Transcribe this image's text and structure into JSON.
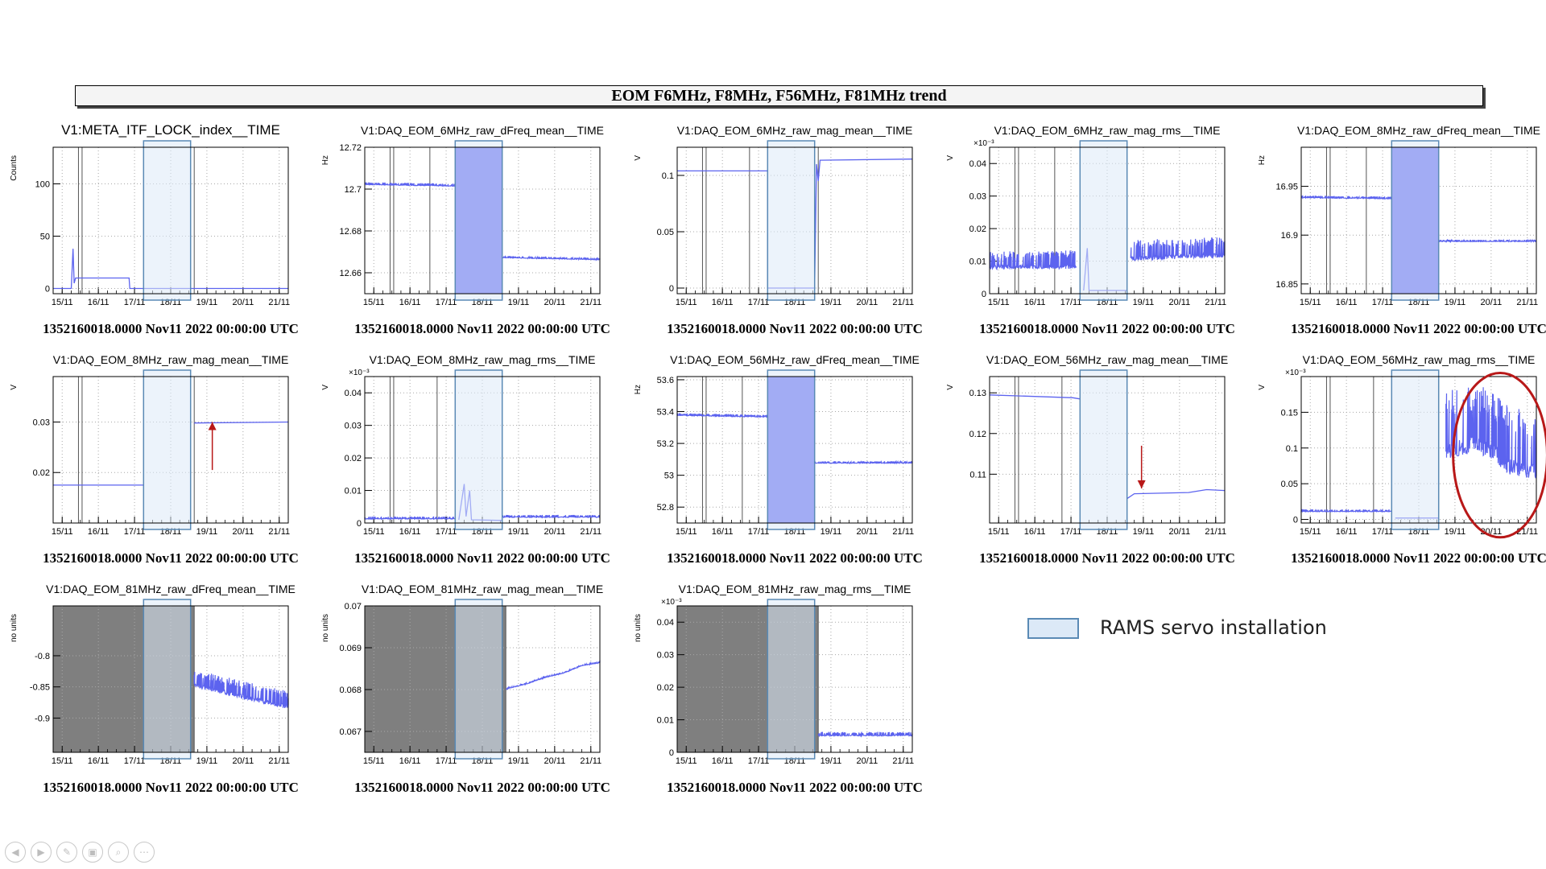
{
  "banner": {
    "title": "EOM F6MHz, F8MHz, F56MHz, F81MHz trend"
  },
  "legend": {
    "label": "RAMS servo installation",
    "fill": "#dce9f7",
    "stroke": "#5a8ab5"
  },
  "colors": {
    "trace": "#5c63ef",
    "highlight": "#b81818",
    "nodata": "#7f7f7f"
  },
  "nav": {
    "icons": [
      "back-icon",
      "forward-icon",
      "pen-icon",
      "slides-icon",
      "zoom-icon",
      "more-icon"
    ]
  },
  "chart_data": [
    {
      "type": "line",
      "title": "V1:META_ITF_LOCK_index__TIME",
      "ylabel": "Counts",
      "yexp": "",
      "footer": "1352160018.0000 Nov11 2022 00:00:00 UTC",
      "xticks": [
        "15/11",
        "16/11",
        "17/11",
        "18/11",
        "19/11",
        "20/11",
        "21/11"
      ],
      "xlim": [
        15,
        21.5
      ],
      "ylim": [
        -5,
        135
      ],
      "yticks": [
        0,
        50,
        100
      ],
      "servo_band": [
        17.5,
        18.8
      ],
      "markers": [
        15.7,
        15.8,
        18.9
      ],
      "series": [
        {
          "values": [
            [
              15,
              0
            ],
            [
              15.5,
              0
            ],
            [
              15.55,
              38
            ],
            [
              15.58,
              5
            ],
            [
              15.62,
              10
            ],
            [
              17.1,
              10
            ],
            [
              17.12,
              0
            ],
            [
              21.5,
              0
            ]
          ]
        }
      ]
    },
    {
      "type": "line",
      "title": "V1:DAQ_EOM_6MHz_raw_dFreq_mean__TIME",
      "ylabel": "Hz",
      "yexp": "",
      "footer": "1352160018.0000 Nov11 2022 00:00:00 UTC",
      "xticks": [
        "15/11",
        "16/11",
        "17/11",
        "18/11",
        "19/11",
        "20/11",
        "21/11"
      ],
      "xlim": [
        15,
        21.5
      ],
      "ylim": [
        12.65,
        12.72
      ],
      "yticks": [
        12.66,
        12.68,
        12.7,
        12.72
      ],
      "servo_band": [
        17.5,
        18.8
      ],
      "markers": [
        15.7,
        15.8,
        16.8
      ],
      "series": [
        {
          "values": [
            [
              15,
              12.7025
            ],
            [
              17.5,
              12.7018
            ]
          ],
          "noise": 0.0008
        },
        {
          "values": [
            [
              18.8,
              12.6675
            ],
            [
              21.5,
              12.6665
            ]
          ],
          "noise": 0.0006
        }
      ],
      "fills": [
        {
          "x": [
            17.5,
            18.8
          ],
          "y": [
            12.65,
            12.72
          ]
        }
      ]
    },
    {
      "type": "line",
      "title": "V1:DAQ_EOM_6MHz_raw_mag_mean__TIME",
      "ylabel": "V",
      "yexp": "",
      "footer": "1352160018.0000 Nov11 2022 00:00:00 UTC",
      "xticks": [
        "15/11",
        "16/11",
        "17/11",
        "18/11",
        "19/11",
        "20/11",
        "21/11"
      ],
      "xlim": [
        15,
        21.5
      ],
      "ylim": [
        -0.005,
        0.125
      ],
      "yticks": [
        0,
        0.05,
        0.1
      ],
      "servo_band": [
        17.5,
        18.8
      ],
      "markers": [
        15.7,
        15.8,
        17.0,
        18.9
      ],
      "series": [
        {
          "values": [
            [
              15,
              0.104
            ],
            [
              17.5,
              0.104
            ],
            [
              17.5,
              0
            ],
            [
              18.8,
              0
            ],
            [
              18.85,
              0.11
            ],
            [
              18.9,
              0.095
            ],
            [
              18.95,
              0.1135
            ],
            [
              21.5,
              0.1145
            ]
          ]
        }
      ]
    },
    {
      "type": "line",
      "title": "V1:DAQ_EOM_6MHz_raw_mag_rms__TIME",
      "ylabel": "V",
      "yexp": "×10⁻³",
      "footer": "1352160018.0000 Nov11 2022 00:00:00 UTC",
      "xticks": [
        "15/11",
        "16/11",
        "17/11",
        "18/11",
        "19/11",
        "20/11",
        "21/11"
      ],
      "xlim": [
        15,
        21.5
      ],
      "ylim": [
        0,
        0.045
      ],
      "yticks": [
        0,
        0.01,
        0.02,
        0.03,
        0.04
      ],
      "servo_band": [
        17.5,
        18.8
      ],
      "markers": [
        15.7,
        15.8,
        16.8
      ],
      "series": [
        {
          "values": [
            [
              15,
              0.0095
            ],
            [
              17.4,
              0.0098
            ]
          ],
          "noise": 0.0035
        },
        {
          "values": [
            [
              17.6,
              0.001
            ],
            [
              17.7,
              0.014
            ],
            [
              17.75,
              0.001
            ],
            [
              18.8,
              0.001
            ]
          ]
        },
        {
          "values": [
            [
              18.9,
              0.0125
            ],
            [
              21.5,
              0.0135
            ]
          ],
          "noise": 0.004
        }
      ]
    },
    {
      "type": "line",
      "title": "V1:DAQ_EOM_8MHz_raw_dFreq_mean__TIME",
      "ylabel": "Hz",
      "yexp": "",
      "footer": "1352160018.0000 Nov11 2022 00:00:00 UTC",
      "xticks": [
        "15/11",
        "16/11",
        "17/11",
        "18/11",
        "19/11",
        "20/11",
        "21/11"
      ],
      "xlim": [
        15,
        21.5
      ],
      "ylim": [
        16.84,
        16.99
      ],
      "yticks": [
        16.85,
        16.9,
        16.95
      ],
      "servo_band": [
        17.5,
        18.8
      ],
      "markers": [
        15.7,
        15.8,
        16.8
      ],
      "series": [
        {
          "values": [
            [
              15,
              16.939
            ],
            [
              17.5,
              16.938
            ]
          ],
          "noise": 0.0015
        },
        {
          "values": [
            [
              18.8,
              16.894
            ],
            [
              21.5,
              16.894
            ]
          ],
          "noise": 0.0012
        }
      ],
      "fills": [
        {
          "x": [
            17.5,
            18.8
          ],
          "y": [
            16.84,
            16.99
          ]
        }
      ]
    },
    {
      "type": "line",
      "title": "V1:DAQ_EOM_8MHz_raw_mag_mean__TIME",
      "ylabel": "V",
      "yexp": "",
      "footer": "1352160018.0000 Nov11 2022 00:00:00 UTC",
      "xticks": [
        "15/11",
        "16/11",
        "17/11",
        "18/11",
        "19/11",
        "20/11",
        "21/11"
      ],
      "xlim": [
        15,
        21.5
      ],
      "ylim": [
        0.01,
        0.039
      ],
      "yticks": [
        0.02,
        0.03
      ],
      "servo_band": [
        17.5,
        18.8
      ],
      "markers": [
        15.7,
        15.8,
        18.9
      ],
      "series": [
        {
          "values": [
            [
              15,
              0.0175
            ],
            [
              17.5,
              0.0175
            ]
          ]
        },
        {
          "values": [
            [
              18.9,
              0.0298
            ],
            [
              21.5,
              0.03
            ]
          ]
        }
      ],
      "arrows": [
        {
          "from": [
            19.4,
            0.0205
          ],
          "to": [
            19.4,
            0.03
          ]
        }
      ]
    },
    {
      "type": "line",
      "title": "V1:DAQ_EOM_8MHz_raw_mag_rms__TIME",
      "ylabel": "V",
      "yexp": "×10⁻³",
      "footer": "1352160018.0000 Nov11 2022 00:00:00 UTC",
      "xticks": [
        "15/11",
        "16/11",
        "17/11",
        "18/11",
        "19/11",
        "20/11",
        "21/11"
      ],
      "xlim": [
        15,
        21.5
      ],
      "ylim": [
        0,
        0.045
      ],
      "yticks": [
        0,
        0.01,
        0.02,
        0.03,
        0.04
      ],
      "servo_band": [
        17.5,
        18.8
      ],
      "markers": [
        15.7,
        15.8,
        17.0
      ],
      "series": [
        {
          "values": [
            [
              15,
              0.0015
            ],
            [
              17.5,
              0.0015
            ]
          ],
          "noise": 0.0005
        },
        {
          "values": [
            [
              17.6,
              0.001
            ],
            [
              17.75,
              0.012
            ],
            [
              17.8,
              0.002
            ],
            [
              17.9,
              0.01
            ],
            [
              17.95,
              0.001
            ],
            [
              18.8,
              0.0008
            ]
          ]
        },
        {
          "values": [
            [
              18.8,
              0.002
            ],
            [
              21.5,
              0.002
            ]
          ],
          "noise": 0.0005
        }
      ]
    },
    {
      "type": "line",
      "title": "V1:DAQ_EOM_56MHz_raw_dFreq_mean__TIME",
      "ylabel": "Hz",
      "yexp": "",
      "footer": "1352160018.0000 Nov11 2022 00:00:00 UTC",
      "xticks": [
        "15/11",
        "16/11",
        "17/11",
        "18/11",
        "19/11",
        "20/11",
        "21/11"
      ],
      "xlim": [
        15,
        21.5
      ],
      "ylim": [
        52.7,
        53.62
      ],
      "yticks": [
        52.8,
        53,
        53.2,
        53.4,
        53.6
      ],
      "servo_band": [
        17.5,
        18.8
      ],
      "markers": [
        15.7,
        15.8,
        16.8
      ],
      "series": [
        {
          "values": [
            [
              15,
              53.38
            ],
            [
              17.5,
              53.37
            ]
          ],
          "noise": 0.01
        },
        {
          "values": [
            [
              18.8,
              53.08
            ],
            [
              21.5,
              53.08
            ]
          ],
          "noise": 0.008
        }
      ],
      "fills": [
        {
          "x": [
            17.5,
            18.8
          ],
          "y": [
            52.7,
            53.62
          ]
        }
      ]
    },
    {
      "type": "line",
      "title": "V1:DAQ_EOM_56MHz_raw_mag_mean__TIME",
      "ylabel": "V",
      "yexp": "",
      "footer": "1352160018.0000 Nov11 2022 00:00:00 UTC",
      "xticks": [
        "15/11",
        "16/11",
        "17/11",
        "18/11",
        "19/11",
        "20/11",
        "21/11"
      ],
      "xlim": [
        15,
        21.5
      ],
      "ylim": [
        0.098,
        0.134
      ],
      "yticks": [
        0.11,
        0.12,
        0.13
      ],
      "servo_band": [
        17.5,
        18.8
      ],
      "markers": [
        15.7,
        15.8,
        17.0
      ],
      "series": [
        {
          "values": [
            [
              15,
              0.1295
            ],
            [
              17.3,
              0.1288
            ],
            [
              17.5,
              0.1285
            ]
          ]
        },
        {
          "values": [
            [
              18.8,
              0.104
            ],
            [
              19.0,
              0.1052
            ],
            [
              20.5,
              0.1055
            ],
            [
              21.0,
              0.1062
            ],
            [
              21.5,
              0.106
            ]
          ]
        }
      ],
      "arrows": [
        {
          "from": [
            19.2,
            0.117
          ],
          "to": [
            19.2,
            0.1065
          ]
        }
      ]
    },
    {
      "type": "line",
      "title": "V1:DAQ_EOM_56MHz_raw_mag_rms__TIME",
      "ylabel": "V",
      "yexp": "×10⁻³",
      "footer": "1352160018.0000 Nov11 2022 00:00:00 UTC",
      "xticks": [
        "15/11",
        "16/11",
        "17/11",
        "18/11",
        "19/11",
        "20/11",
        "21/11"
      ],
      "xlim": [
        15,
        21.5
      ],
      "ylim": [
        -0.005,
        0.2
      ],
      "yticks": [
        0,
        0.05,
        0.1,
        0.15
      ],
      "servo_band": [
        17.5,
        18.8
      ],
      "markers": [
        15.7,
        15.8,
        17.0,
        18.8
      ],
      "series": [
        {
          "values": [
            [
              15,
              0.012
            ],
            [
              17.5,
              0.012
            ]
          ],
          "noise": 0.002
        },
        {
          "values": [
            [
              17.6,
              0.002
            ],
            [
              18.8,
              0.002
            ]
          ]
        },
        {
          "values": [
            [
              19.0,
              0.12
            ],
            [
              19.8,
              0.13
            ],
            [
              20.3,
              0.12
            ],
            [
              20.7,
              0.1
            ],
            [
              21.5,
              0.09
            ]
          ],
          "noise": 0.06
        }
      ],
      "circle": {
        "cx": 20.5,
        "cy": 0.09,
        "rx": 1.3,
        "ry": 0.115
      }
    },
    {
      "type": "line",
      "title": "V1:DAQ_EOM_81MHz_raw_dFreq_mean__TIME",
      "ylabel": "no units",
      "yexp": "",
      "footer": "1352160018.0000 Nov11 2022 00:00:00 UTC",
      "xticks": [
        "15/11",
        "16/11",
        "17/11",
        "18/11",
        "19/11",
        "20/11",
        "21/11"
      ],
      "xlim": [
        15,
        21.5
      ],
      "ylim": [
        -0.955,
        -0.72
      ],
      "yticks": [
        -0.9,
        -0.85,
        -0.8
      ],
      "servo_band": [
        17.5,
        18.8
      ],
      "markers": [
        18.9
      ],
      "nodata": [
        15,
        18.9
      ],
      "series": [
        {
          "values": [
            [
              18.9,
              -0.84
            ],
            [
              21.5,
              -0.875
            ]
          ],
          "noise": 0.018
        }
      ]
    },
    {
      "type": "line",
      "title": "V1:DAQ_EOM_81MHz_raw_mag_mean__TIME",
      "ylabel": "no units",
      "yexp": "",
      "footer": "1352160018.0000 Nov11 2022 00:00:00 UTC",
      "xticks": [
        "15/11",
        "16/11",
        "17/11",
        "18/11",
        "19/11",
        "20/11",
        "21/11"
      ],
      "xlim": [
        15,
        21.5
      ],
      "ylim": [
        0.0665,
        0.07
      ],
      "yticks": [
        0.067,
        0.068,
        0.069,
        0.07
      ],
      "servo_band": [
        17.5,
        18.8
      ],
      "markers": [
        18.9
      ],
      "nodata": [
        15,
        18.9
      ],
      "series": [
        {
          "values": [
            [
              18.9,
              0.06802
            ],
            [
              19.5,
              0.06815
            ],
            [
              20.0,
              0.0683
            ],
            [
              20.5,
              0.0684
            ],
            [
              21.0,
              0.06858
            ],
            [
              21.5,
              0.06865
            ]
          ],
          "noise": 2e-05
        }
      ]
    },
    {
      "type": "line",
      "title": "V1:DAQ_EOM_81MHz_raw_mag_rms__TIME",
      "ylabel": "no units",
      "yexp": "×10⁻³",
      "footer": "1352160018.0000 Nov11 2022 00:00:00 UTC",
      "xticks": [
        "15/11",
        "16/11",
        "17/11",
        "18/11",
        "19/11",
        "20/11",
        "21/11"
      ],
      "xlim": [
        15,
        21.5
      ],
      "ylim": [
        0,
        0.045
      ],
      "yticks": [
        0,
        0.01,
        0.02,
        0.03,
        0.04
      ],
      "servo_band": [
        17.5,
        18.8
      ],
      "markers": [
        18.9
      ],
      "nodata": [
        15,
        18.9
      ],
      "series": [
        {
          "values": [
            [
              18.9,
              0.0055
            ],
            [
              21.5,
              0.0055
            ]
          ],
          "noise": 0.0008
        }
      ]
    }
  ]
}
